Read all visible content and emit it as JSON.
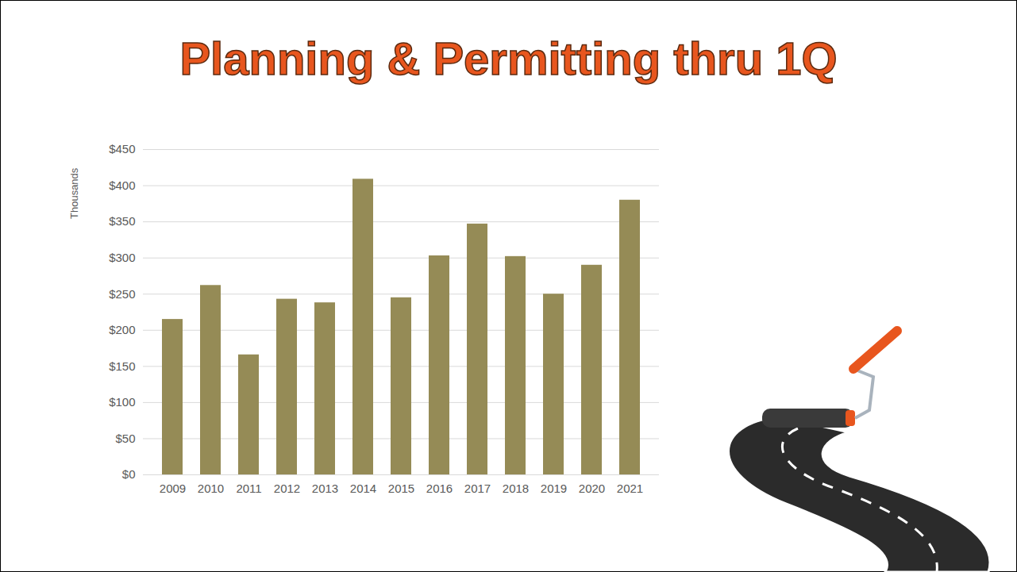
{
  "chart_data": {
    "type": "bar",
    "title": "Planning & Permitting thru 1Q",
    "ylabel": "Thousands",
    "categories": [
      "2009",
      "2010",
      "2011",
      "2012",
      "2013",
      "2014",
      "2015",
      "2016",
      "2017",
      "2018",
      "2019",
      "2020",
      "2021"
    ],
    "values": [
      215,
      262,
      166,
      243,
      238,
      409,
      245,
      303,
      347,
      302,
      250,
      290,
      380
    ],
    "color": "#958b56",
    "ylim": [
      0,
      450
    ],
    "yticks": [
      {
        "value": 0,
        "label": "$0"
      },
      {
        "value": 50,
        "label": "$50"
      },
      {
        "value": 100,
        "label": "$100"
      },
      {
        "value": 150,
        "label": "$150"
      },
      {
        "value": 200,
        "label": "$200"
      },
      {
        "value": 250,
        "label": "$250"
      },
      {
        "value": 300,
        "label": "$300"
      },
      {
        "value": 350,
        "label": "$350"
      },
      {
        "value": 400,
        "label": "$400"
      },
      {
        "value": 450,
        "label": "$450"
      }
    ],
    "grid": true
  }
}
